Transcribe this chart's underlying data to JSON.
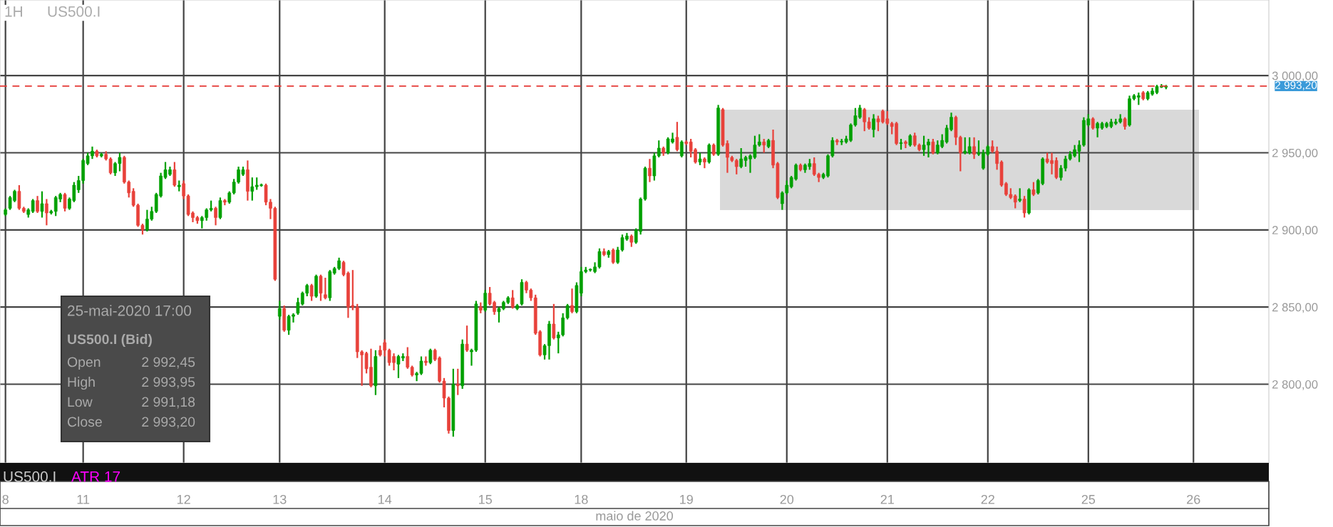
{
  "chart_data": {
    "type": "candlestick",
    "xlabel": "maio de 2020",
    "categories": [
      "8",
      null,
      null,
      null,
      null,
      null,
      null,
      null,
      null,
      null,
      null,
      null,
      null,
      null,
      null,
      null,
      null,
      "11",
      null,
      null,
      null,
      null,
      null,
      null,
      null,
      null,
      null,
      null,
      null,
      null,
      null,
      null,
      null,
      null,
      null,
      null,
      null,
      null,
      null,
      "12",
      null,
      null,
      null,
      null,
      null,
      null,
      null,
      null,
      null,
      null,
      null,
      null,
      null,
      null,
      null,
      null,
      null,
      null,
      null,
      null,
      "13",
      null,
      null,
      null,
      null,
      null,
      null,
      null,
      null,
      null,
      null,
      null,
      null,
      null,
      null,
      null,
      null,
      null,
      null,
      null,
      null,
      null,
      null,
      "14",
      null,
      null,
      null,
      null,
      null,
      null,
      null,
      null,
      null,
      null,
      null,
      null,
      null,
      null,
      null,
      null,
      null,
      null,
      null,
      null,
      null,
      "15",
      null,
      null,
      null,
      null,
      null,
      null,
      null,
      null,
      null,
      null,
      null,
      null,
      null,
      null,
      null,
      null,
      null,
      null,
      null,
      null,
      "18",
      null,
      null,
      null,
      null,
      null,
      null,
      null,
      null,
      null,
      null,
      null,
      null,
      null,
      null,
      null,
      null,
      null,
      null,
      null,
      null,
      null,
      null,
      "19",
      null,
      null,
      null,
      null,
      null,
      null,
      null,
      null,
      null,
      null,
      null,
      null,
      null,
      null,
      null,
      null,
      null,
      null,
      null,
      null,
      null,
      "20",
      null,
      null,
      null,
      null,
      null,
      null,
      null,
      null,
      null,
      null,
      null,
      null,
      null,
      null,
      null,
      null,
      null,
      null,
      null,
      null,
      null,
      "21",
      null,
      null,
      null,
      null,
      null,
      null,
      null,
      null,
      null,
      null,
      null,
      null,
      null,
      null,
      null,
      null,
      null,
      null,
      null,
      null,
      null,
      "22",
      null,
      null,
      null,
      null,
      null,
      null,
      null,
      null,
      null,
      null,
      null,
      null,
      null,
      null,
      null,
      null,
      null,
      null,
      null,
      null,
      null,
      "25",
      null,
      null,
      null,
      null,
      null,
      null,
      null,
      null,
      null,
      null,
      null,
      null,
      null,
      null,
      null,
      null,
      null,
      null,
      null,
      null,
      null,
      null,
      "26",
      null,
      null,
      null,
      null,
      null,
      null,
      null,
      null,
      null,
      null,
      null,
      null,
      null,
      null,
      null,
      null
    ],
    "ohlc": [
      [
        2910,
        2914,
        2909,
        2913
      ],
      [
        2914,
        2922,
        2913,
        2921
      ],
      [
        2919,
        2926,
        2918,
        2925
      ],
      [
        2925,
        2929,
        2913,
        2914
      ],
      [
        2914,
        2915,
        2911,
        2912
      ],
      [
        2910,
        2914,
        2908,
        2913
      ],
      [
        2912,
        2920,
        2911,
        2919
      ],
      [
        2919,
        2922,
        2911,
        2912
      ],
      [
        2912,
        2925,
        2908,
        2917
      ],
      [
        2917,
        2920,
        2903,
        2911
      ],
      [
        2911,
        2913,
        2910,
        2912
      ],
      [
        2912,
        2922,
        2909,
        2921
      ],
      [
        2920,
        2924,
        2918,
        2923
      ],
      [
        2923,
        2924,
        2912,
        2914
      ],
      [
        2914,
        2921,
        2913,
        2920
      ],
      [
        2919,
        2931,
        2918,
        2929
      ],
      [
        2926,
        2935,
        2924,
        2932
      ],
      [
        2932,
        2946,
        2930,
        2945
      ],
      [
        2943,
        2950,
        2942,
        2948
      ],
      [
        2948,
        2954,
        2946,
        2951
      ],
      [
        2951,
        2952,
        2947,
        2948
      ],
      [
        2948,
        2950,
        2947,
        2949
      ],
      [
        2949,
        2951,
        2945,
        2946
      ],
      [
        2946,
        2947,
        2936,
        2937
      ],
      [
        2937,
        2944,
        2935,
        2943
      ],
      [
        2943,
        2950,
        2938,
        2947
      ],
      [
        2947,
        2948,
        2930,
        2931
      ],
      [
        2931,
        2932,
        2921,
        2924
      ],
      [
        2925,
        2927,
        2915,
        2916
      ],
      [
        2916,
        2917,
        2902,
        2903
      ],
      [
        2903,
        2904,
        2897,
        2900
      ],
      [
        2900,
        2913,
        2899,
        2907
      ],
      [
        2907,
        2915,
        2906,
        2912
      ],
      [
        2912,
        2924,
        2911,
        2923
      ],
      [
        2922,
        2937,
        2921,
        2935
      ],
      [
        2934,
        2944,
        2933,
        2939
      ],
      [
        2936,
        2941,
        2935,
        2939
      ],
      [
        2939,
        2944,
        2928,
        2929
      ],
      [
        2928,
        2932,
        2925,
        2929
      ],
      [
        2930,
        2932,
        2920,
        2922
      ],
      [
        2922,
        2923,
        2909,
        2910
      ],
      [
        2911,
        2912,
        2905,
        2908
      ],
      [
        2908,
        2909,
        2904,
        2906
      ],
      [
        2906,
        2909,
        2901,
        2908
      ],
      [
        2908,
        2914,
        2906,
        2913
      ],
      [
        2913,
        2919,
        2912,
        2914
      ],
      [
        2914,
        2915,
        2903,
        2908
      ],
      [
        2908,
        2921,
        2907,
        2919
      ],
      [
        2919,
        2920,
        2916,
        2918
      ],
      [
        2918,
        2925,
        2917,
        2924
      ],
      [
        2924,
        2933,
        2923,
        2931
      ],
      [
        2931,
        2941,
        2930,
        2939
      ],
      [
        2936,
        2941,
        2935,
        2939
      ],
      [
        2939,
        2945,
        2919,
        2925
      ],
      [
        2925,
        2934,
        2919,
        2928
      ],
      [
        2928,
        2934,
        2926,
        2929
      ],
      [
        2928.8,
        2930,
        2928,
        2929.2
      ],
      [
        2929,
        2930,
        2916,
        2918
      ],
      [
        2918,
        2920,
        2907,
        2914
      ],
      [
        2914,
        2915,
        2867,
        2868
      ],
      [
        2844,
        2854,
        2842,
        2849
      ],
      [
        2849,
        2851,
        2834,
        2835
      ],
      [
        2835,
        2845,
        2832,
        2844
      ],
      [
        2844,
        2846,
        2840,
        2845
      ],
      [
        2846,
        2856,
        2845,
        2853
      ],
      [
        2852,
        2860,
        2851,
        2859
      ],
      [
        2859,
        2865,
        2857,
        2864
      ],
      [
        2864,
        2865,
        2854,
        2857
      ],
      [
        2857,
        2871,
        2856,
        2870
      ],
      [
        2870,
        2871,
        2854,
        2859
      ],
      [
        2858,
        2869,
        2855,
        2856
      ],
      [
        2856,
        2874,
        2854,
        2873
      ],
      [
        2872,
        2876,
        2871,
        2875
      ],
      [
        2875,
        2882,
        2874,
        2880
      ],
      [
        2879,
        2880,
        2870,
        2871
      ],
      [
        2872,
        2873,
        2843,
        2850
      ],
      [
        2851,
        2874,
        2848,
        2850
      ],
      [
        2850,
        2852,
        2817,
        2821
      ],
      [
        2821,
        2822,
        2799,
        2819
      ],
      [
        2820,
        2821,
        2807,
        2810
      ],
      [
        2811,
        2823,
        2798,
        2799
      ],
      [
        2799,
        2822,
        2793,
        2818
      ],
      [
        2822,
        2825,
        2818,
        2819
      ],
      [
        2827,
        2829,
        2818,
        2822
      ],
      [
        2822,
        2823,
        2812,
        2814
      ],
      [
        2818,
        2820,
        2809,
        2814
      ],
      [
        2813,
        2819,
        2804,
        2818
      ],
      [
        2817,
        2820,
        2815,
        2818
      ],
      [
        2818,
        2824,
        2810,
        2811
      ],
      [
        2811,
        2812,
        2805,
        2806
      ],
      [
        2806,
        2808,
        2802,
        2807
      ],
      [
        2807,
        2818,
        2806,
        2815
      ],
      [
        2815,
        2818,
        2812,
        2814
      ],
      [
        2814,
        2823,
        2813,
        2822
      ],
      [
        2822,
        2823,
        2815,
        2816
      ],
      [
        2817,
        2818,
        2801,
        2802
      ],
      [
        2802,
        2804,
        2785,
        2791
      ],
      [
        2791,
        2792,
        2768,
        2770
      ],
      [
        2770,
        2810,
        2766,
        2800
      ],
      [
        2800,
        2810,
        2793,
        2799
      ],
      [
        2799,
        2829,
        2797,
        2826
      ],
      [
        2826,
        2838,
        2821,
        2822
      ],
      [
        2821,
        2823,
        2812,
        2822
      ],
      [
        2822,
        2854,
        2821,
        2852
      ],
      [
        2850,
        2853,
        2846,
        2848
      ],
      [
        2848,
        2861,
        2847,
        2859
      ],
      [
        2859,
        2863,
        2851,
        2852
      ],
      [
        2853,
        2854,
        2845,
        2847
      ],
      [
        2847,
        2850,
        2840,
        2849
      ],
      [
        2849,
        2854,
        2848,
        2853
      ],
      [
        2853,
        2857,
        2852,
        2856
      ],
      [
        2856,
        2861,
        2849,
        2850
      ],
      [
        2849,
        2852,
        2848,
        2851
      ],
      [
        2852,
        2868,
        2851,
        2866
      ],
      [
        2866,
        2867,
        2859,
        2861
      ],
      [
        2861,
        2862,
        2854,
        2856
      ],
      [
        2856,
        2858,
        2832,
        2833
      ],
      [
        2834,
        2835,
        2818,
        2819
      ],
      [
        2819,
        2826,
        2816,
        2825
      ],
      [
        2825,
        2841,
        2816,
        2839
      ],
      [
        2839,
        2852,
        2829,
        2830
      ],
      [
        2830,
        2834,
        2820,
        2832
      ],
      [
        2832,
        2846,
        2831,
        2843
      ],
      [
        2843,
        2852,
        2842,
        2851
      ],
      [
        2851,
        2862,
        2846,
        2847
      ],
      [
        2847,
        2866,
        2846,
        2864
      ],
      [
        2859,
        2876,
        2857,
        2873
      ],
      [
        2873,
        2876,
        2872,
        2874
      ],
      [
        2874,
        2875,
        2873,
        2874.5
      ],
      [
        2873,
        2879,
        2872,
        2876
      ],
      [
        2876,
        2888,
        2875,
        2886
      ],
      [
        2886,
        2888,
        2883,
        2884
      ],
      [
        2884,
        2887,
        2882,
        2886
      ],
      [
        2887,
        2888,
        2878,
        2879
      ],
      [
        2879,
        2889,
        2878,
        2887
      ],
      [
        2887,
        2897,
        2886,
        2895
      ],
      [
        2894,
        2898,
        2893,
        2896
      ],
      [
        2896,
        2897,
        2889,
        2892
      ],
      [
        2892,
        2901,
        2891,
        2900
      ],
      [
        2899,
        2921,
        2897,
        2920
      ],
      [
        2920,
        2941,
        2919,
        2940
      ],
      [
        2940,
        2946,
        2931,
        2935
      ],
      [
        2935,
        2950,
        2932,
        2948
      ],
      [
        2948,
        2958,
        2947,
        2953
      ],
      [
        2953,
        2954,
        2948,
        2950
      ],
      [
        2950,
        2960,
        2949,
        2959
      ],
      [
        2957,
        2963,
        2956,
        2959
      ],
      [
        2960,
        2970,
        2951,
        2952
      ],
      [
        2948,
        2958,
        2947,
        2957
      ],
      [
        2957,
        2958,
        2955,
        2956
      ],
      [
        2957,
        2959,
        2947,
        2951
      ],
      [
        2952,
        2953,
        2943,
        2944
      ],
      [
        2944,
        2950,
        2942,
        2946
      ],
      [
        2946,
        2947,
        2940,
        2944
      ],
      [
        2944,
        2956,
        2943,
        2955
      ],
      [
        2955,
        2956,
        2948,
        2949
      ],
      [
        2949,
        2981,
        2948,
        2979
      ],
      [
        2978,
        2979,
        2954,
        2955
      ],
      [
        2956,
        2958,
        2937,
        2947
      ],
      [
        2947,
        2948,
        2944,
        2945
      ],
      [
        2945,
        2946,
        2936,
        2941
      ],
      [
        2941,
        2953,
        2940,
        2946
      ],
      [
        2945,
        2948,
        2941,
        2947
      ],
      [
        2946,
        2949,
        2937,
        2948
      ],
      [
        2947,
        2961,
        2946,
        2955
      ],
      [
        2955,
        2962,
        2954,
        2957
      ],
      [
        2957,
        2959,
        2950,
        2955
      ],
      [
        2954,
        2959,
        2953,
        2958
      ],
      [
        2958,
        2965,
        2940,
        2942
      ],
      [
        2943,
        2944,
        2920,
        2921
      ],
      [
        2917,
        2925,
        2913,
        2924
      ],
      [
        2924,
        2932,
        2923,
        2929
      ],
      [
        2928,
        2935,
        2927,
        2934
      ],
      [
        2933,
        2943,
        2932,
        2942
      ],
      [
        2942,
        2943,
        2938,
        2939
      ],
      [
        2939,
        2943,
        2937,
        2942
      ],
      [
        2941,
        2946,
        2939,
        2943
      ],
      [
        2943,
        2947,
        2935,
        2936
      ],
      [
        2936,
        2937,
        2931,
        2934
      ],
      [
        2934,
        2937,
        2933,
        2936
      ],
      [
        2935,
        2949,
        2934,
        2948
      ],
      [
        2948,
        2960,
        2947,
        2958
      ],
      [
        2958,
        2959,
        2955,
        2957
      ],
      [
        2957,
        2959,
        2955,
        2957.5
      ],
      [
        2957,
        2961,
        2956,
        2959
      ],
      [
        2958,
        2969,
        2957,
        2968
      ],
      [
        2968,
        2979,
        2967,
        2974
      ],
      [
        2973,
        2981,
        2972,
        2979
      ],
      [
        2978,
        2979,
        2964,
        2970
      ],
      [
        2970,
        2973,
        2965,
        2966
      ],
      [
        2965,
        2975,
        2960,
        2972
      ],
      [
        2972,
        2974,
        2964,
        2970
      ],
      [
        2977,
        2978,
        2969,
        2970
      ],
      [
        2972,
        2977,
        2968,
        2969
      ],
      [
        2969,
        2970,
        2962,
        2967
      ],
      [
        2969,
        2970,
        2955,
        2956
      ],
      [
        2956,
        2959,
        2952,
        2956.5
      ],
      [
        2957,
        2958,
        2953,
        2956
      ],
      [
        2955,
        2962,
        2954,
        2961
      ],
      [
        2961,
        2963,
        2954,
        2955
      ],
      [
        2955,
        2956,
        2951,
        2952
      ],
      [
        2952,
        2961,
        2948,
        2955
      ],
      [
        2955,
        2959,
        2947,
        2957
      ],
      [
        2957,
        2959,
        2949,
        2950
      ],
      [
        2950,
        2958,
        2949,
        2955
      ],
      [
        2954,
        2962,
        2953,
        2958
      ],
      [
        2957,
        2968,
        2956,
        2966
      ],
      [
        2965,
        2976,
        2964,
        2973
      ],
      [
        2973,
        2974,
        2955,
        2960
      ],
      [
        2960,
        2961,
        2938,
        2950
      ],
      [
        2950,
        2960,
        2949,
        2951
      ],
      [
        2950,
        2960,
        2949,
        2954
      ],
      [
        2954,
        2960,
        2946,
        2949
      ],
      [
        2949,
        2958,
        2948,
        2950
      ],
      [
        2940,
        2952,
        2939,
        2950
      ],
      [
        2949,
        2955,
        2948,
        2954
      ],
      [
        2954,
        2958,
        2950,
        2951
      ],
      [
        2951,
        2954,
        2939,
        2943
      ],
      [
        2944,
        2945,
        2928,
        2929
      ],
      [
        2930,
        2931,
        2922,
        2923
      ],
      [
        2923,
        2927,
        2920,
        2921
      ],
      [
        2922,
        2923,
        2914,
        2918
      ],
      [
        2919,
        2927,
        2918,
        2920
      ],
      [
        2920,
        2922,
        2908,
        2911
      ],
      [
        2911,
        2927,
        2910,
        2926
      ],
      [
        2926,
        2931,
        2922,
        2923
      ],
      [
        2924,
        2933,
        2923,
        2932
      ],
      [
        2930,
        2947,
        2929,
        2946
      ],
      [
        2946,
        2950,
        2943,
        2944
      ],
      [
        2945,
        2950,
        2936,
        2943
      ],
      [
        2945,
        2947,
        2933,
        2934
      ],
      [
        2934,
        2942,
        2932,
        2940
      ],
      [
        2940,
        2948,
        2938,
        2946
      ],
      [
        2946,
        2951,
        2945,
        2949
      ],
      [
        2948,
        2955,
        2947,
        2952
      ],
      [
        2951,
        2958,
        2944,
        2955
      ],
      [
        2955,
        2973,
        2954,
        2971
      ],
      [
        2968,
        2975,
        2967,
        2972
      ],
      [
        2972,
        2973,
        2965,
        2966
      ],
      [
        2966,
        2970,
        2960,
        2969
      ],
      [
        2966,
        2970,
        2965,
        2969
      ],
      [
        2967,
        2970,
        2966,
        2969
      ],
      [
        2967,
        2972,
        2966,
        2970
      ],
      [
        2969,
        2972,
        2968,
        2970
      ],
      [
        2970,
        2975,
        2969,
        2972
      ],
      [
        2972,
        2973,
        2965,
        2967
      ],
      [
        2968,
        2987,
        2967,
        2985
      ],
      [
        2985,
        2988,
        2984,
        2987
      ],
      [
        2986,
        2989,
        2981,
        2987
      ],
      [
        2989,
        2990,
        2984,
        2985
      ],
      [
        2985,
        2990,
        2984,
        2989
      ],
      [
        2988,
        2992,
        2987,
        2990
      ],
      [
        2989,
        2994,
        2988,
        2993
      ],
      [
        2992.5,
        2994.5,
        2992,
        2993
      ],
      [
        2992.45,
        2993.95,
        2991.18,
        2993.2
      ],
      null,
      null,
      null,
      null,
      null,
      null,
      null,
      null,
      null,
      null,
      null,
      null,
      null,
      null,
      null,
      null,
      null,
      null,
      null,
      null,
      null,
      null
    ],
    "ylim": [
      2749,
      3049
    ],
    "yticks": [
      {
        "value": 2800,
        "label": "2 800,00"
      },
      {
        "value": 2850,
        "label": "2 850,00"
      },
      {
        "value": 2900,
        "label": "2 900,00"
      },
      {
        "value": 2950,
        "label": "2 950,00"
      },
      {
        "value": 3000,
        "label": "3 000,00"
      }
    ],
    "grid": true,
    "ref_lines": [
      {
        "axis": "y",
        "value": 2993.2,
        "label": "2 993,20",
        "color": "#e53935",
        "line_style": "dashed"
      }
    ],
    "annotations": [
      "1H",
      "US500.I",
      "25-mai-2020 17:00",
      "US500.I (Bid)",
      "Open",
      "2 992,45",
      "High",
      "2 993,95",
      "Low",
      "2 991,18",
      "Close",
      "2 993,20",
      "US500.I",
      "ATR 17"
    ]
  }
}
